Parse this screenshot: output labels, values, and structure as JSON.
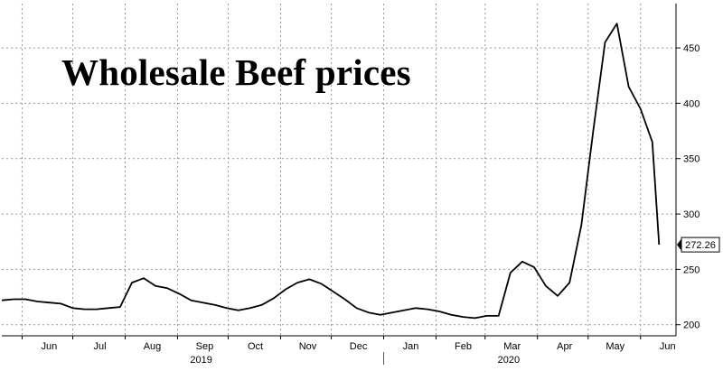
{
  "chart_data": {
    "type": "line",
    "title": "Wholesale Beef prices",
    "xlabel": "",
    "ylabel": "",
    "y_axis_position": "right",
    "grid": true,
    "ylim": [
      190,
      490
    ],
    "y_ticks": [
      200,
      250,
      300,
      350,
      400,
      450
    ],
    "x_range": [
      "2019-05-20",
      "2020-06-22"
    ],
    "x_ticks": [
      {
        "label": "Jun",
        "date": "2019-06-01"
      },
      {
        "label": "Jul",
        "date": "2019-07-01"
      },
      {
        "label": "Aug",
        "date": "2019-08-01"
      },
      {
        "label": "Sep",
        "date": "2019-09-01"
      },
      {
        "label": "Oct",
        "date": "2019-10-01"
      },
      {
        "label": "Nov",
        "date": "2019-11-01"
      },
      {
        "label": "Dec",
        "date": "2019-12-01"
      },
      {
        "label": "Jan",
        "date": "2020-01-01"
      },
      {
        "label": "Feb",
        "date": "2020-02-01"
      },
      {
        "label": "Mar",
        "date": "2020-03-01"
      },
      {
        "label": "Apr",
        "date": "2020-04-01"
      },
      {
        "label": "May",
        "date": "2020-05-01"
      },
      {
        "label": "Jun",
        "date": "2020-06-01"
      }
    ],
    "year_labels": [
      {
        "label": "2019",
        "date": "2019-09-15"
      },
      {
        "label": "2020",
        "date": "2020-03-15"
      }
    ],
    "last_value_label": "272.26",
    "line_color": "#000000",
    "series": [
      {
        "values": [
          [
            "2019-05-20",
            222
          ],
          [
            "2019-05-27",
            223
          ],
          [
            "2019-06-03",
            223
          ],
          [
            "2019-06-10",
            221
          ],
          [
            "2019-06-17",
            220
          ],
          [
            "2019-06-24",
            219
          ],
          [
            "2019-07-01",
            215
          ],
          [
            "2019-07-08",
            214
          ],
          [
            "2019-07-15",
            214
          ],
          [
            "2019-07-22",
            215
          ],
          [
            "2019-07-29",
            216
          ],
          [
            "2019-08-05",
            238
          ],
          [
            "2019-08-12",
            242
          ],
          [
            "2019-08-19",
            235
          ],
          [
            "2019-08-26",
            233
          ],
          [
            "2019-09-02",
            228
          ],
          [
            "2019-09-09",
            222
          ],
          [
            "2019-09-16",
            220
          ],
          [
            "2019-09-23",
            218
          ],
          [
            "2019-09-30",
            215
          ],
          [
            "2019-10-07",
            213
          ],
          [
            "2019-10-14",
            215
          ],
          [
            "2019-10-21",
            218
          ],
          [
            "2019-10-28",
            224
          ],
          [
            "2019-11-04",
            232
          ],
          [
            "2019-11-11",
            238
          ],
          [
            "2019-11-18",
            241
          ],
          [
            "2019-11-25",
            237
          ],
          [
            "2019-12-02",
            230
          ],
          [
            "2019-12-09",
            223
          ],
          [
            "2019-12-16",
            215
          ],
          [
            "2019-12-23",
            211
          ],
          [
            "2019-12-30",
            209
          ],
          [
            "2020-01-06",
            211
          ],
          [
            "2020-01-13",
            213
          ],
          [
            "2020-01-20",
            215
          ],
          [
            "2020-01-27",
            214
          ],
          [
            "2020-02-03",
            212
          ],
          [
            "2020-02-10",
            209
          ],
          [
            "2020-02-17",
            207
          ],
          [
            "2020-02-24",
            206
          ],
          [
            "2020-03-02",
            208
          ],
          [
            "2020-03-09",
            208
          ],
          [
            "2020-03-16",
            247
          ],
          [
            "2020-03-23",
            257
          ],
          [
            "2020-03-30",
            252
          ],
          [
            "2020-04-06",
            235
          ],
          [
            "2020-04-13",
            226
          ],
          [
            "2020-04-20",
            238
          ],
          [
            "2020-04-27",
            290
          ],
          [
            "2020-05-04",
            375
          ],
          [
            "2020-05-11",
            455
          ],
          [
            "2020-05-18",
            472
          ],
          [
            "2020-05-25",
            415
          ],
          [
            "2020-06-01",
            395
          ],
          [
            "2020-06-08",
            365
          ],
          [
            "2020-06-12",
            272.26
          ]
        ]
      }
    ]
  }
}
